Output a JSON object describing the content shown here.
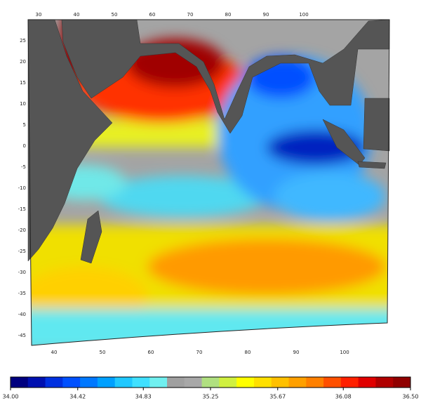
{
  "map": {
    "top_lon_ticks": [
      30,
      40,
      50,
      60,
      70,
      80,
      90,
      100
    ],
    "bottom_lon_ticks": [
      40,
      50,
      60,
      70,
      80,
      90,
      100
    ],
    "lat_ticks": [
      25,
      20,
      15,
      10,
      5,
      0,
      -5,
      -10,
      -15,
      -20,
      -25,
      -30,
      -35,
      -40,
      -45
    ]
  },
  "colorbar": {
    "range": [
      34,
      36.5
    ],
    "ticks": [
      {
        "value": 34,
        "label": "34.00"
      },
      {
        "value": 34.42,
        "label": "34.42"
      },
      {
        "value": 34.83,
        "label": "34.83"
      },
      {
        "value": 35.25,
        "label": "35.25"
      },
      {
        "value": 35.67,
        "label": "35.67"
      },
      {
        "value": 36.08,
        "label": "36.08"
      },
      {
        "value": 36.5,
        "label": "36.50"
      }
    ],
    "colors": [
      "#00007f",
      "#0010b0",
      "#0030e0",
      "#0050ff",
      "#0078ff",
      "#00a0ff",
      "#20c8ff",
      "#40e0ff",
      "#70f0f0",
      "#a0a0a0",
      "#a8a8a8",
      "#b0e080",
      "#d0f040",
      "#ffff00",
      "#ffe000",
      "#ffc000",
      "#ffa000",
      "#ff8000",
      "#ff5000",
      "#ff2000",
      "#e00000",
      "#b00000",
      "#900000"
    ]
  }
}
